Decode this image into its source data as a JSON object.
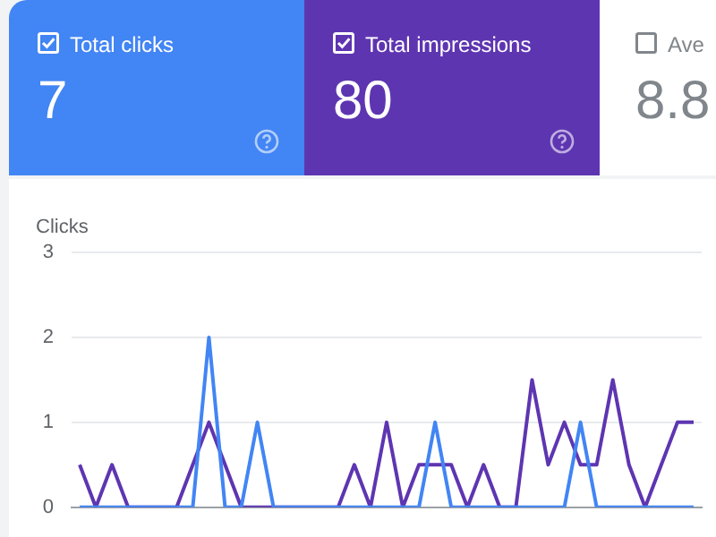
{
  "chart_data": {
    "type": "line",
    "ylabel": "Clicks",
    "ylim": [
      0,
      3
    ],
    "yticks": [
      0,
      1,
      2,
      3
    ],
    "grid": "y",
    "tick_labels": "y",
    "marker": "none",
    "legend": "top",
    "line_style": "solid",
    "categories": [
      null,
      null,
      null,
      null,
      null,
      null,
      null,
      null,
      null,
      null,
      null,
      null,
      null,
      null,
      null,
      null,
      null,
      null,
      null,
      null,
      null,
      null,
      null,
      null,
      null,
      null,
      null,
      null,
      null,
      null,
      null,
      null,
      null,
      null,
      null,
      null,
      null,
      null,
      null
    ],
    "series": [
      {
        "name": "Total clicks",
        "color": "#4285f4",
        "values": [
          0,
          0,
          0,
          0,
          0,
          0,
          0,
          0,
          2,
          0,
          0,
          1,
          0,
          0,
          0,
          0,
          0,
          0,
          0,
          0,
          0,
          0,
          1,
          0,
          0,
          0,
          0,
          0,
          0,
          0,
          0,
          1,
          0,
          0,
          0,
          0,
          0,
          0,
          0
        ]
      },
      {
        "name": "Total impressions",
        "color": "#5e35b1",
        "values": [
          0.5,
          0,
          0.5,
          0,
          0,
          0,
          0,
          0.5,
          1,
          0.5,
          0,
          0,
          0,
          0,
          0,
          0,
          0,
          0.5,
          0,
          1,
          0,
          0.5,
          0.5,
          0.5,
          0,
          0.5,
          0,
          0,
          1.5,
          0.5,
          1,
          0.5,
          0.5,
          1.5,
          0.5,
          0,
          0.5,
          1,
          1
        ]
      }
    ],
    "annotations": [
      "7",
      "80",
      "Ave",
      "8.8"
    ]
  }
}
